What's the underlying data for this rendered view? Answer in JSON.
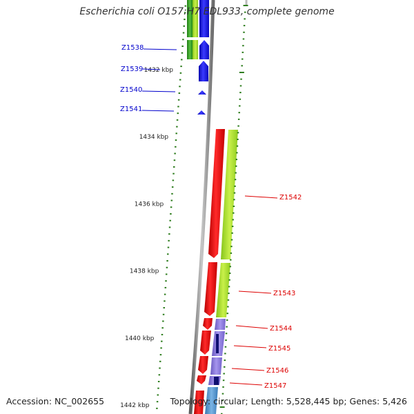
{
  "title": "Escherichia coli O157:H7 EDL933, complete genome",
  "footer": {
    "accession": "Accession: NC_002655",
    "summary": "Topology: circular; Length: 5,528,445 bp; Genes: 5,426"
  },
  "ruler": {
    "unit": "kbp",
    "labels": [
      {
        "kbp": 1432,
        "text": "1432 kbp"
      },
      {
        "kbp": 1434,
        "text": "1434 kbp"
      },
      {
        "kbp": 1436,
        "text": "1436 kbp"
      },
      {
        "kbp": 1438,
        "text": "1438 kbp"
      },
      {
        "kbp": 1440,
        "text": "1440 kbp"
      },
      {
        "kbp": 1442,
        "text": "1442 kbp"
      }
    ]
  },
  "genes": [
    {
      "name": "Z1538",
      "strand": "left"
    },
    {
      "name": "Z1539",
      "strand": "left"
    },
    {
      "name": "Z1540",
      "strand": "left"
    },
    {
      "name": "Z1541",
      "strand": "left"
    },
    {
      "name": "Z1542",
      "strand": "right"
    },
    {
      "name": "Z1543",
      "strand": "right"
    },
    {
      "name": "Z1544",
      "strand": "right"
    },
    {
      "name": "Z1545",
      "strand": "right"
    },
    {
      "name": "Z1546",
      "strand": "right"
    },
    {
      "name": "Z1547",
      "strand": "right"
    }
  ],
  "colors": {
    "background": "#ffffff",
    "backbone": "#8c8c8c",
    "ruler_ticks": "#2e7d1e",
    "left_label": "#0000cc",
    "right_label": "#dd0000",
    "cds_reverse": "#1414e6",
    "cds_forward": "#e60000",
    "cog_green": "#a6e22a",
    "cog_dark_green": "#2e9a1e",
    "cog_purple": "#8a78d8",
    "cog_navy": "#101070",
    "cog_steelblue": "#4a8cc8"
  }
}
